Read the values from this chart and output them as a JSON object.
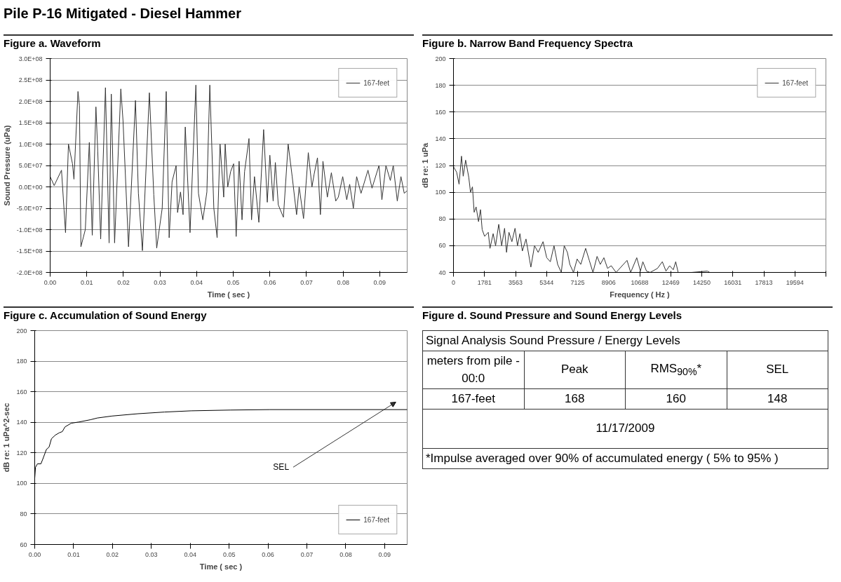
{
  "chart_data": [
    {
      "type": "line",
      "title": "Pile P-16 Mitigated - Diesel Hammer",
      "subtitle": "Figure a. Waveform",
      "xlabel": "Time ( sec )",
      "ylabel": "Sound Pressure (uPa)",
      "xlim": [
        0,
        0.0975
      ],
      "ylim": [
        -200000000.0,
        300000000.0
      ],
      "xticks": [
        {
          "value": 0,
          "label": "0.00"
        },
        {
          "value": 0.01,
          "label": "0.01"
        },
        {
          "value": 0.02,
          "label": "0.02"
        },
        {
          "value": 0.03,
          "label": "0.03"
        },
        {
          "value": 0.04,
          "label": "0.04"
        },
        {
          "value": 0.05,
          "label": "0.05"
        },
        {
          "value": 0.06,
          "label": "0.06"
        },
        {
          "value": 0.07,
          "label": "0.07"
        },
        {
          "value": 0.08,
          "label": "0.08"
        },
        {
          "value": 0.09,
          "label": "0.09"
        }
      ],
      "yticks": [
        {
          "value": -200000000.0,
          "label": "-2.0E+08"
        },
        {
          "value": -150000000.0,
          "label": "-1.5E+08"
        },
        {
          "value": -100000000.0,
          "label": "-1.0E+08"
        },
        {
          "value": -50000000.0,
          "label": "-5.0E+07"
        },
        {
          "value": 0,
          "label": "0.0E+00"
        },
        {
          "value": 50000000.0,
          "label": "5.0E+07"
        },
        {
          "value": 100000000.0,
          "label": "1.0E+08"
        },
        {
          "value": 150000000.0,
          "label": "1.5E+08"
        },
        {
          "value": 200000000.0,
          "label": "2.0E+08"
        },
        {
          "value": 250000000.0,
          "label": "2.5E+08"
        },
        {
          "value": 300000000.0,
          "label": "3.0E+08"
        }
      ],
      "grid": "y",
      "legend": "top right",
      "series": [
        {
          "name": "167-feet",
          "color": "#333333",
          "x": [
            0.0,
            0.0011,
            0.0031,
            0.0038,
            0.0042,
            0.005,
            0.0061,
            0.0065,
            0.0076,
            0.008,
            0.0084,
            0.0096,
            0.0107,
            0.0115,
            0.0125,
            0.013,
            0.0138,
            0.0151,
            0.0161,
            0.0167,
            0.0176,
            0.0193,
            0.0199,
            0.0214,
            0.0233,
            0.0241,
            0.0252,
            0.0271,
            0.0283,
            0.0291,
            0.0306,
            0.0317,
            0.0325,
            0.0333,
            0.0344,
            0.0348,
            0.0356,
            0.0363,
            0.0369,
            0.0382,
            0.0398,
            0.0405,
            0.0417,
            0.0428,
            0.0436,
            0.0447,
            0.0456,
            0.0464,
            0.0474,
            0.0478,
            0.0485,
            0.0493,
            0.0501,
            0.0508,
            0.0516,
            0.0524,
            0.0531,
            0.0543,
            0.055,
            0.0558,
            0.057,
            0.0583,
            0.0593,
            0.06,
            0.0609,
            0.0615,
            0.0623,
            0.0637,
            0.065,
            0.0661,
            0.0673,
            0.068,
            0.0692,
            0.0705,
            0.0715,
            0.0721,
            0.073,
            0.0738,
            0.0745,
            0.0757,
            0.0768,
            0.078,
            0.0787,
            0.0799,
            0.081,
            0.0818,
            0.0828,
            0.0837,
            0.0849,
            0.0868,
            0.0879,
            0.0898,
            0.0906,
            0.0917,
            0.0929,
            0.0937,
            0.0948,
            0.0958,
            0.0967,
            0.0975
          ],
          "values": [
            24000000.0,
            3000000.0,
            39000000.0,
            -54000000.0,
            -107000000.0,
            100000000.0,
            54000000.0,
            18000000.0,
            223000000.0,
            190000000.0,
            -140000000.0,
            -100000000.0,
            104000000.0,
            -113000000.0,
            187000000.0,
            83000000.0,
            -122000000.0,
            232000000.0,
            -131000000.0,
            217000000.0,
            -131000000.0,
            229000000.0,
            155000000.0,
            -140000000.0,
            202000000.0,
            -15000000.0,
            -149000000.0,
            220000000.0,
            -18000000.0,
            -143000000.0,
            -50000000.0,
            223000000.0,
            -119000000.0,
            12000000.0,
            50000000.0,
            -60000000.0,
            -12000000.0,
            -65000000.0,
            140000000.0,
            -107000000.0,
            238000000.0,
            -15000000.0,
            -77000000.0,
            -12000000.0,
            238000000.0,
            -50000000.0,
            -119000000.0,
            100000000.0,
            -24000000.0,
            100000000.0,
            0,
            36000000.0,
            54000000.0,
            -116000000.0,
            60000000.0,
            -77000000.0,
            36000000.0,
            113000000.0,
            -77000000.0,
            24000000.0,
            -83000000.0,
            134000000.0,
            -36000000.0,
            74000000.0,
            -33000000.0,
            57000000.0,
            -42000000.0,
            -71000000.0,
            100000000.0,
            24000000.0,
            -65000000.0,
            0,
            -74000000.0,
            80000000.0,
            0,
            30000000.0,
            68000000.0,
            -65000000.0,
            60000000.0,
            -24000000.0,
            33000000.0,
            -33000000.0,
            -24000000.0,
            24000000.0,
            -30000000.0,
            6000000.0,
            -50000000.0,
            24000000.0,
            -15000000.0,
            39000000.0,
            -3000000.0,
            50000000.0,
            -30000000.0,
            50000000.0,
            15000000.0,
            50000000.0,
            -33000000.0,
            24000000.0,
            -15000000.0,
            -9000000.0
          ]
        }
      ]
    },
    {
      "type": "line",
      "title": "Figure b. Narrow Band Frequency Spectra",
      "xlabel": "Frequency ( Hz )",
      "ylabel": "dB re: 1 uPa",
      "xlim": [
        0,
        21375
      ],
      "ylim": [
        40,
        200
      ],
      "xticks": [
        0,
        {
          "value": 1781.25,
          "label": "1781"
        },
        {
          "value": 3562.5,
          "label": "3563"
        },
        {
          "value": 5343.75,
          "label": "5344"
        },
        7125,
        {
          "value": 8906.25,
          "label": "8906"
        },
        {
          "value": 10687.5,
          "label": "10688"
        },
        {
          "value": 12468.75,
          "label": "12469"
        },
        14250,
        {
          "value": 16031.25,
          "label": "16031"
        },
        {
          "value": 17812.5,
          "label": "17813"
        },
        {
          "value": 19593.75,
          "label": "19594"
        },
        {
          "value": 21375,
          "label": null
        }
      ],
      "yticks": [
        40,
        60,
        80,
        100,
        120,
        140,
        160,
        180,
        200
      ],
      "grid": "y",
      "legend": "top right",
      "series": [
        {
          "name": "167-feet",
          "color": "#333333",
          "x": [
            0,
            182,
            321,
            461,
            559,
            698,
            880,
            978,
            1090,
            1187,
            1299,
            1439,
            1551,
            1648,
            1788,
            1998,
            2096,
            2277,
            2417,
            2598,
            2766,
            2934,
            3045,
            3185,
            3353,
            3534,
            3674,
            3814,
            3953,
            4163,
            4442,
            4652,
            4862,
            5141,
            5351,
            5560,
            5770,
            5979,
            6189,
            6356,
            6538,
            6678,
            6887,
            7097,
            7306,
            7586,
            7795,
            8005,
            8242,
            8424,
            8633,
            8843,
            9053,
            9332,
            9751,
            9961,
            10170,
            10519,
            10729,
            10869,
            11078,
            11288,
            11707,
            11986,
            12196,
            12405,
            12615,
            12755,
            12894,
            13104,
            13662,
            14571,
            14710,
            21375
          ],
          "values": [
            119,
            115,
            106,
            127,
            112,
            124,
            111,
            100,
            104,
            85,
            89,
            78,
            87,
            72,
            67,
            70,
            58,
            69,
            60,
            76,
            60,
            73,
            55,
            70,
            63,
            73,
            60,
            69,
            56,
            65,
            44,
            60,
            55,
            63,
            51,
            48,
            60,
            46,
            40,
            60,
            55,
            46,
            40,
            50,
            46,
            58,
            49,
            40,
            52,
            46,
            51,
            43,
            45,
            40,
            46,
            49,
            40,
            51,
            41,
            48,
            41,
            40,
            43,
            48,
            41,
            45,
            42,
            48,
            40,
            40,
            40,
            41,
            40,
            40
          ]
        }
      ]
    },
    {
      "type": "line",
      "title": "Figure c. Accumulation of Sound Energy",
      "xlabel": "Time ( sec )",
      "ylabel": "dB re: 1 uPa^2-sec",
      "xlim": [
        0,
        0.0958
      ],
      "ylim": [
        60,
        200
      ],
      "xticks": [
        {
          "value": 0,
          "label": "0.00"
        },
        {
          "value": 0.01,
          "label": "0.01"
        },
        {
          "value": 0.02,
          "label": "0.02"
        },
        {
          "value": 0.03,
          "label": "0.03"
        },
        {
          "value": 0.04,
          "label": "0.04"
        },
        {
          "value": 0.05,
          "label": "0.05"
        },
        {
          "value": 0.06,
          "label": "0.06"
        },
        {
          "value": 0.07,
          "label": "0.07"
        },
        {
          "value": 0.08,
          "label": "0.08"
        },
        {
          "value": 0.09,
          "label": "0.09"
        }
      ],
      "yticks": [
        60,
        80,
        100,
        120,
        140,
        160,
        180,
        200
      ],
      "grid": "y",
      "legend": "bottom right",
      "annotations": [
        "SEL"
      ],
      "series": [
        {
          "name": "167-feet",
          "color": "#000000",
          "x": [
            0,
            0,
            0.0002,
            0.0007,
            0.0016,
            0.0022,
            0.003,
            0.0037,
            0.0043,
            0.0053,
            0.0063,
            0.0071,
            0.0078,
            0.0094,
            0.0114,
            0.0144,
            0.0161,
            0.0199,
            0.0266,
            0.0334,
            0.0402,
            0.0504,
            0.0605,
            0.0958
          ],
          "values": [
            60,
            103.4,
            110.5,
            112.8,
            112.8,
            116.7,
            122.2,
            123.8,
            129.2,
            131.6,
            133.1,
            133.9,
            137.0,
            139.4,
            140.2,
            141.7,
            142.8,
            144.1,
            145.6,
            146.7,
            147.5,
            148.0,
            148.3,
            148.3
          ]
        }
      ]
    },
    {
      "type": "other",
      "title": "Figure d. Sound Pressure and Sound Energy Levels",
      "annotations": [
        "Signal Analysis Sound Pressure / Energy Levels",
        "meters from pile - 00:0",
        "Peak",
        "RMS$_{90%}$*",
        "SEL",
        "167-feet",
        "168",
        "160",
        "148",
        "11/17/2009",
        "*Impulse averaged over 90% of accumulated energy ( 5% to 95% )"
      ]
    }
  ]
}
